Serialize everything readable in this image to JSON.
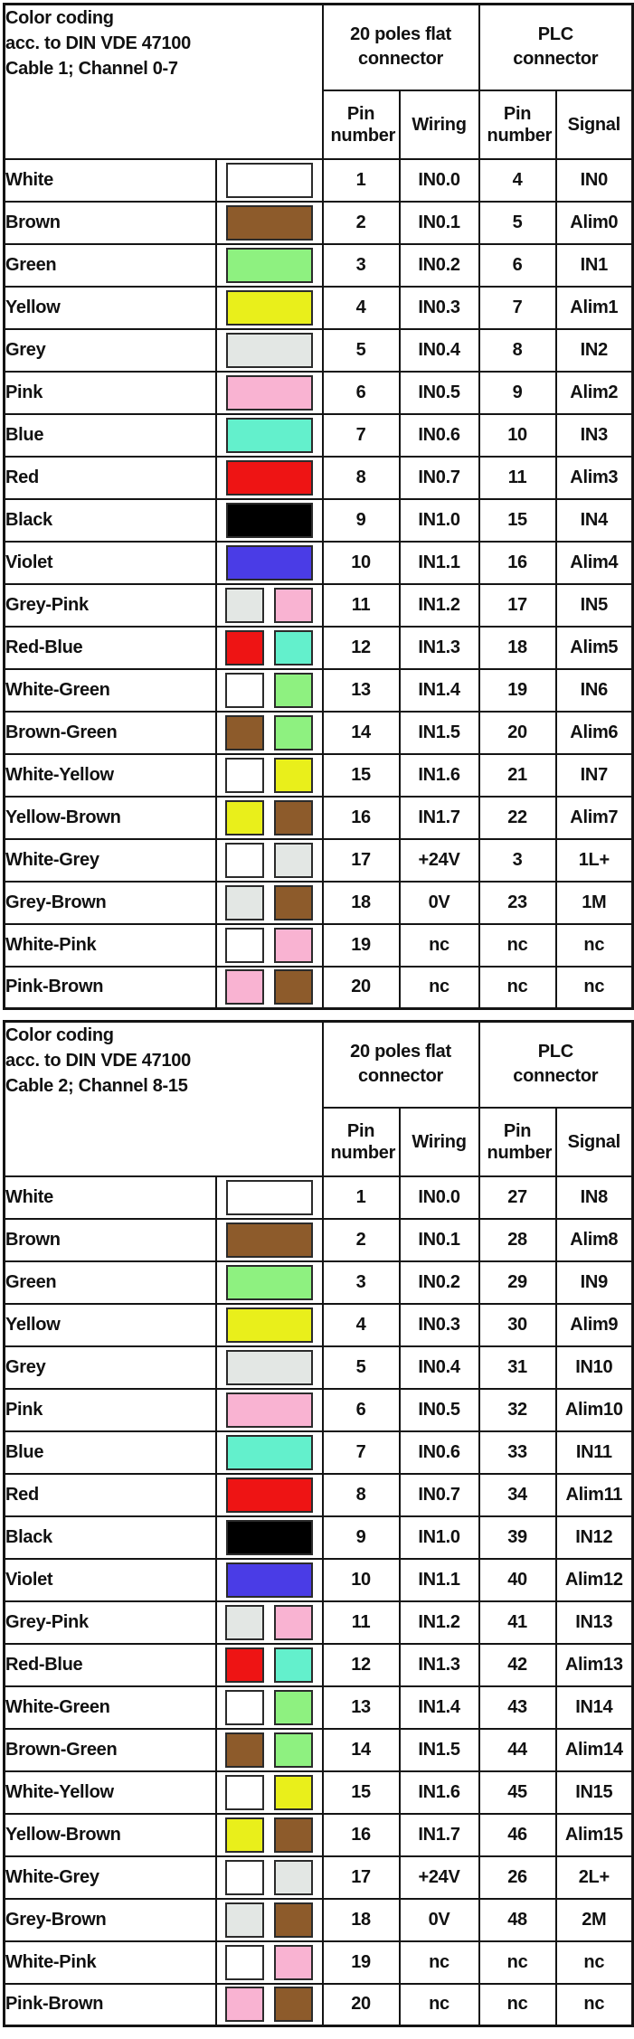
{
  "palette": {
    "white": "#ffffff",
    "brown": "#8d5b2b",
    "green": "#8ef180",
    "yellow": "#e9ef1b",
    "grey": "#e3e7e4",
    "pink": "#f9b3d2",
    "blue": "#63f0cc",
    "red": "#ee1414",
    "black": "#000000",
    "violet": "#4a3ce6"
  },
  "tables": [
    {
      "title_lines": [
        "Color coding",
        "acc. to DIN VDE 47100",
        "Cable 1; Channel 0-7"
      ],
      "group_headers": [
        {
          "lines": [
            "20 poles flat",
            "connector"
          ]
        },
        {
          "lines": [
            "PLC",
            "connector"
          ]
        }
      ],
      "sub_headers": [
        "Pin number",
        "Wiring",
        "Pin number",
        "Signal"
      ],
      "rows": [
        {
          "name": "White",
          "swatches": [
            "white"
          ],
          "pin": "1",
          "wiring": "IN0.0",
          "plc_pin": "4",
          "signal": "IN0"
        },
        {
          "name": "Brown",
          "swatches": [
            "brown"
          ],
          "pin": "2",
          "wiring": "IN0.1",
          "plc_pin": "5",
          "signal": "Alim0"
        },
        {
          "name": "Green",
          "swatches": [
            "green"
          ],
          "pin": "3",
          "wiring": "IN0.2",
          "plc_pin": "6",
          "signal": "IN1"
        },
        {
          "name": "Yellow",
          "swatches": [
            "yellow"
          ],
          "pin": "4",
          "wiring": "IN0.3",
          "plc_pin": "7",
          "signal": "Alim1"
        },
        {
          "name": "Grey",
          "swatches": [
            "grey"
          ],
          "pin": "5",
          "wiring": "IN0.4",
          "plc_pin": "8",
          "signal": "IN2"
        },
        {
          "name": "Pink",
          "swatches": [
            "pink"
          ],
          "pin": "6",
          "wiring": "IN0.5",
          "plc_pin": "9",
          "signal": "Alim2"
        },
        {
          "name": "Blue",
          "swatches": [
            "blue"
          ],
          "pin": "7",
          "wiring": "IN0.6",
          "plc_pin": "10",
          "signal": "IN3"
        },
        {
          "name": "Red",
          "swatches": [
            "red"
          ],
          "pin": "8",
          "wiring": "IN0.7",
          "plc_pin": "11",
          "signal": "Alim3"
        },
        {
          "name": "Black",
          "swatches": [
            "black"
          ],
          "pin": "9",
          "wiring": "IN1.0",
          "plc_pin": "15",
          "signal": "IN4"
        },
        {
          "name": "Violet",
          "swatches": [
            "violet"
          ],
          "pin": "10",
          "wiring": "IN1.1",
          "plc_pin": "16",
          "signal": "Alim4"
        },
        {
          "name": "Grey-Pink",
          "swatches": [
            "grey",
            "pink"
          ],
          "pin": "11",
          "wiring": "IN1.2",
          "plc_pin": "17",
          "signal": "IN5"
        },
        {
          "name": "Red-Blue",
          "swatches": [
            "red",
            "blue"
          ],
          "pin": "12",
          "wiring": "IN1.3",
          "plc_pin": "18",
          "signal": "Alim5"
        },
        {
          "name": "White-Green",
          "swatches": [
            "white",
            "green"
          ],
          "pin": "13",
          "wiring": "IN1.4",
          "plc_pin": "19",
          "signal": "IN6"
        },
        {
          "name": "Brown-Green",
          "swatches": [
            "brown",
            "green"
          ],
          "pin": "14",
          "wiring": "IN1.5",
          "plc_pin": "20",
          "signal": "Alim6"
        },
        {
          "name": "White-Yellow",
          "swatches": [
            "white",
            "yellow"
          ],
          "pin": "15",
          "wiring": "IN1.6",
          "plc_pin": "21",
          "signal": "IN7"
        },
        {
          "name": "Yellow-Brown",
          "swatches": [
            "yellow",
            "brown"
          ],
          "pin": "16",
          "wiring": "IN1.7",
          "plc_pin": "22",
          "signal": "Alim7"
        },
        {
          "name": "White-Grey",
          "swatches": [
            "white",
            "grey"
          ],
          "pin": "17",
          "wiring": "+24V",
          "plc_pin": "3",
          "signal": "1L+"
        },
        {
          "name": "Grey-Brown",
          "swatches": [
            "grey",
            "brown"
          ],
          "pin": "18",
          "wiring": "0V",
          "plc_pin": "23",
          "signal": "1M"
        },
        {
          "name": "White-Pink",
          "swatches": [
            "white",
            "pink"
          ],
          "pin": "19",
          "wiring": "nc",
          "plc_pin": "nc",
          "signal": "nc"
        },
        {
          "name": "Pink-Brown",
          "swatches": [
            "pink",
            "brown"
          ],
          "pin": "20",
          "wiring": "nc",
          "plc_pin": "nc",
          "signal": "nc"
        }
      ]
    },
    {
      "title_lines": [
        "Color coding",
        "acc. to DIN VDE 47100",
        "Cable 2; Channel 8-15"
      ],
      "group_headers": [
        {
          "lines": [
            "20 poles flat",
            "connector"
          ]
        },
        {
          "lines": [
            "PLC",
            "connector"
          ]
        }
      ],
      "sub_headers": [
        "Pin number",
        "Wiring",
        "Pin number",
        "Signal"
      ],
      "rows": [
        {
          "name": "White",
          "swatches": [
            "white"
          ],
          "pin": "1",
          "wiring": "IN0.0",
          "plc_pin": "27",
          "signal": "IN8"
        },
        {
          "name": "Brown",
          "swatches": [
            "brown"
          ],
          "pin": "2",
          "wiring": "IN0.1",
          "plc_pin": "28",
          "signal": "Alim8"
        },
        {
          "name": "Green",
          "swatches": [
            "green"
          ],
          "pin": "3",
          "wiring": "IN0.2",
          "plc_pin": "29",
          "signal": "IN9"
        },
        {
          "name": "Yellow",
          "swatches": [
            "yellow"
          ],
          "pin": "4",
          "wiring": "IN0.3",
          "plc_pin": "30",
          "signal": "Alim9"
        },
        {
          "name": "Grey",
          "swatches": [
            "grey"
          ],
          "pin": "5",
          "wiring": "IN0.4",
          "plc_pin": "31",
          "signal": "IN10"
        },
        {
          "name": "Pink",
          "swatches": [
            "pink"
          ],
          "pin": "6",
          "wiring": "IN0.5",
          "plc_pin": "32",
          "signal": "Alim10"
        },
        {
          "name": "Blue",
          "swatches": [
            "blue"
          ],
          "pin": "7",
          "wiring": "IN0.6",
          "plc_pin": "33",
          "signal": "IN11"
        },
        {
          "name": "Red",
          "swatches": [
            "red"
          ],
          "pin": "8",
          "wiring": "IN0.7",
          "plc_pin": "34",
          "signal": "Alim11"
        },
        {
          "name": "Black",
          "swatches": [
            "black"
          ],
          "pin": "9",
          "wiring": "IN1.0",
          "plc_pin": "39",
          "signal": "IN12"
        },
        {
          "name": "Violet",
          "swatches": [
            "violet"
          ],
          "pin": "10",
          "wiring": "IN1.1",
          "plc_pin": "40",
          "signal": "Alim12"
        },
        {
          "name": "Grey-Pink",
          "swatches": [
            "grey",
            "pink"
          ],
          "pin": "11",
          "wiring": "IN1.2",
          "plc_pin": "41",
          "signal": "IN13"
        },
        {
          "name": "Red-Blue",
          "swatches": [
            "red",
            "blue"
          ],
          "pin": "12",
          "wiring": "IN1.3",
          "plc_pin": "42",
          "signal": "Alim13"
        },
        {
          "name": "White-Green",
          "swatches": [
            "white",
            "green"
          ],
          "pin": "13",
          "wiring": "IN1.4",
          "plc_pin": "43",
          "signal": "IN14"
        },
        {
          "name": "Brown-Green",
          "swatches": [
            "brown",
            "green"
          ],
          "pin": "14",
          "wiring": "IN1.5",
          "plc_pin": "44",
          "signal": "Alim14"
        },
        {
          "name": "White-Yellow",
          "swatches": [
            "white",
            "yellow"
          ],
          "pin": "15",
          "wiring": "IN1.6",
          "plc_pin": "45",
          "signal": "IN15"
        },
        {
          "name": "Yellow-Brown",
          "swatches": [
            "yellow",
            "brown"
          ],
          "pin": "16",
          "wiring": "IN1.7",
          "plc_pin": "46",
          "signal": "Alim15"
        },
        {
          "name": "White-Grey",
          "swatches": [
            "white",
            "grey"
          ],
          "pin": "17",
          "wiring": "+24V",
          "plc_pin": "26",
          "signal": "2L+"
        },
        {
          "name": "Grey-Brown",
          "swatches": [
            "grey",
            "brown"
          ],
          "pin": "18",
          "wiring": "0V",
          "plc_pin": "48",
          "signal": "2M"
        },
        {
          "name": "White-Pink",
          "swatches": [
            "white",
            "pink"
          ],
          "pin": "19",
          "wiring": "nc",
          "plc_pin": "nc",
          "signal": "nc"
        },
        {
          "name": "Pink-Brown",
          "swatches": [
            "pink",
            "brown"
          ],
          "pin": "20",
          "wiring": "nc",
          "plc_pin": "nc",
          "signal": "nc"
        }
      ]
    }
  ]
}
